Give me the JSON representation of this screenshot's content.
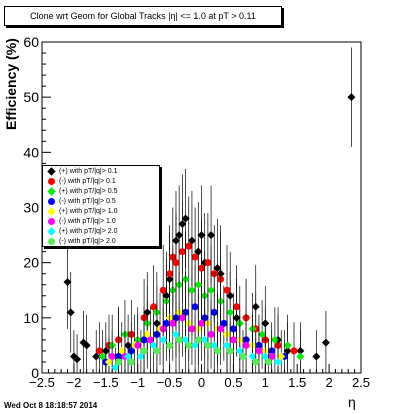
{
  "title": "Clone wrt Geom for Global Tracks",
  "title_overlay": "|η| <= 1.0 at pT > 0.11",
  "timestamp": "Wed Oct  8 18:18:57 2014",
  "chart_data": {
    "type": "scatter",
    "title": "Clone wrt Geom for Global Tracks",
    "xlabel": "η",
    "ylabel": "Efficiency (%)",
    "xlim": [
      -2.5,
      2.5
    ],
    "ylim": [
      0,
      60
    ],
    "x_ticks": [
      -2.5,
      -2,
      -1.5,
      -1,
      -0.5,
      0,
      0.5,
      1,
      1.5,
      2,
      2.5
    ],
    "x_tick_labels": [
      "−2.5",
      "−2",
      "−1.5",
      "−1",
      "−0.5",
      "0",
      "0.5",
      "1",
      "1.5",
      "2",
      "2.5"
    ],
    "y_ticks": [
      0,
      10,
      20,
      30,
      40,
      50,
      60
    ],
    "y_tick_labels": [
      "0",
      "10",
      "20",
      "30",
      "40",
      "50",
      "60"
    ],
    "grid": false,
    "legend_position": "left-middle",
    "series": [
      {
        "name": "(+) with pT/|q|> 0.1",
        "color": "#000000",
        "marker": "diamond",
        "points": [
          [
            -2.1,
            16.5
          ],
          [
            -2.05,
            11
          ],
          [
            -2.0,
            3
          ],
          [
            -1.95,
            2.5
          ],
          [
            -1.85,
            5.5
          ],
          [
            -1.8,
            5
          ],
          [
            -1.65,
            3
          ],
          [
            -1.5,
            4
          ],
          [
            -1.3,
            6
          ],
          [
            -1.15,
            5
          ],
          [
            -0.85,
            11
          ],
          [
            -0.7,
            9
          ],
          [
            -0.55,
            14
          ],
          [
            -0.5,
            17
          ],
          [
            -0.4,
            24
          ],
          [
            -0.35,
            25
          ],
          [
            -0.3,
            27
          ],
          [
            -0.25,
            28
          ],
          [
            -0.15,
            24
          ],
          [
            -0.05,
            22
          ],
          [
            0.0,
            25
          ],
          [
            0.05,
            20
          ],
          [
            0.15,
            25
          ],
          [
            0.25,
            19
          ],
          [
            0.3,
            18
          ],
          [
            0.45,
            14
          ],
          [
            0.55,
            10
          ],
          [
            0.7,
            10
          ],
          [
            0.85,
            12
          ],
          [
            1.0,
            9
          ],
          [
            1.2,
            6
          ],
          [
            1.35,
            4
          ],
          [
            1.55,
            4
          ],
          [
            1.8,
            3
          ],
          [
            1.95,
            5.5
          ],
          [
            2.35,
            50
          ]
        ]
      },
      {
        "name": "(-) with pT/|q|> 0.1",
        "color": "#ff0000",
        "marker": "circle",
        "points": [
          [
            -1.6,
            4
          ],
          [
            -1.45,
            5
          ],
          [
            -1.3,
            6
          ],
          [
            -1.1,
            7
          ],
          [
            -0.9,
            10
          ],
          [
            -0.75,
            12
          ],
          [
            -0.6,
            15
          ],
          [
            -0.5,
            18
          ],
          [
            -0.45,
            21
          ],
          [
            -0.4,
            20
          ],
          [
            -0.3,
            22
          ],
          [
            -0.2,
            23
          ],
          [
            -0.1,
            21
          ],
          [
            0.0,
            19
          ],
          [
            0.1,
            20
          ],
          [
            0.2,
            18
          ],
          [
            0.3,
            17
          ],
          [
            0.4,
            15
          ],
          [
            0.55,
            12
          ],
          [
            0.7,
            10
          ],
          [
            0.85,
            8
          ],
          [
            1.0,
            6
          ],
          [
            1.2,
            5
          ],
          [
            1.45,
            4
          ]
        ]
      },
      {
        "name": "(+) with pT/|q|> 0.5",
        "color": "#00ee00",
        "marker": "diamond",
        "points": [
          [
            -1.55,
            3
          ],
          [
            -1.4,
            5
          ],
          [
            -1.2,
            7
          ],
          [
            -1.0,
            6
          ],
          [
            -0.85,
            9
          ],
          [
            -0.7,
            11
          ],
          [
            -0.55,
            13
          ],
          [
            -0.45,
            15
          ],
          [
            -0.35,
            16
          ],
          [
            -0.25,
            17
          ],
          [
            -0.15,
            15
          ],
          [
            -0.05,
            16
          ],
          [
            0.05,
            14
          ],
          [
            0.15,
            15
          ],
          [
            0.3,
            13
          ],
          [
            0.45,
            11
          ],
          [
            0.6,
            9
          ],
          [
            0.8,
            8
          ],
          [
            0.95,
            7
          ],
          [
            1.15,
            6
          ],
          [
            1.35,
            5
          ],
          [
            1.55,
            3
          ]
        ]
      },
      {
        "name": "(-) with pT/|q|> 0.5",
        "color": "#0000ff",
        "marker": "circle",
        "points": [
          [
            -1.5,
            2
          ],
          [
            -1.3,
            3
          ],
          [
            -1.1,
            4
          ],
          [
            -0.9,
            6
          ],
          [
            -0.7,
            7
          ],
          [
            -0.55,
            9
          ],
          [
            -0.4,
            10
          ],
          [
            -0.25,
            11
          ],
          [
            -0.1,
            12
          ],
          [
            0.05,
            10
          ],
          [
            0.2,
            11
          ],
          [
            0.35,
            9
          ],
          [
            0.5,
            8
          ],
          [
            0.7,
            6
          ],
          [
            0.9,
            5
          ],
          [
            1.1,
            4
          ],
          [
            1.3,
            3
          ]
        ]
      },
      {
        "name": "(+) with pT/|q|> 1.0",
        "color": "#ffff00",
        "marker": "diamond",
        "points": [
          [
            -1.45,
            2
          ],
          [
            -1.25,
            4
          ],
          [
            -1.05,
            5
          ],
          [
            -0.85,
            7
          ],
          [
            -0.65,
            8
          ],
          [
            -0.5,
            10
          ],
          [
            -0.35,
            11
          ],
          [
            -0.2,
            9
          ],
          [
            -0.05,
            8
          ],
          [
            0.1,
            9
          ],
          [
            0.25,
            8
          ],
          [
            0.4,
            7
          ],
          [
            0.6,
            6
          ],
          [
            0.8,
            5
          ],
          [
            1.0,
            4
          ],
          [
            1.25,
            3
          ]
        ]
      },
      {
        "name": "(-) with pT/|q|> 1.0",
        "color": "#ff00ff",
        "marker": "circle",
        "points": [
          [
            -1.4,
            3
          ],
          [
            -1.2,
            3
          ],
          [
            -1.0,
            5
          ],
          [
            -0.8,
            6
          ],
          [
            -0.6,
            8
          ],
          [
            -0.45,
            9
          ],
          [
            -0.3,
            10
          ],
          [
            -0.15,
            8
          ],
          [
            0.0,
            9
          ],
          [
            0.15,
            7
          ],
          [
            0.3,
            8
          ],
          [
            0.5,
            6
          ],
          [
            0.7,
            5
          ],
          [
            0.9,
            4
          ],
          [
            1.1,
            3
          ]
        ]
      },
      {
        "name": "(+) with pT/|q|> 2.0",
        "color": "#00ffff",
        "marker": "diamond",
        "points": [
          [
            -1.35,
            1
          ],
          [
            -1.15,
            3
          ],
          [
            -0.95,
            3
          ],
          [
            -0.75,
            5
          ],
          [
            -0.6,
            6
          ],
          [
            -0.4,
            7
          ],
          [
            -0.25,
            6
          ],
          [
            -0.1,
            5
          ],
          [
            0.05,
            6
          ],
          [
            0.2,
            5
          ],
          [
            0.4,
            5
          ],
          [
            0.6,
            4
          ],
          [
            0.8,
            3
          ],
          [
            1.0,
            3
          ],
          [
            1.2,
            2
          ]
        ]
      },
      {
        "name": "(-) with pT/|q|> 2.0",
        "color": "#55ee55",
        "marker": "circle",
        "points": [
          [
            -1.3,
            2
          ],
          [
            -1.1,
            2
          ],
          [
            -0.9,
            4
          ],
          [
            -0.7,
            4
          ],
          [
            -0.5,
            5
          ],
          [
            -0.35,
            6
          ],
          [
            -0.2,
            5
          ],
          [
            -0.05,
            6
          ],
          [
            0.1,
            5
          ],
          [
            0.25,
            4
          ],
          [
            0.45,
            4
          ],
          [
            0.65,
            3
          ],
          [
            0.85,
            2
          ],
          [
            1.05,
            2
          ]
        ]
      }
    ]
  }
}
